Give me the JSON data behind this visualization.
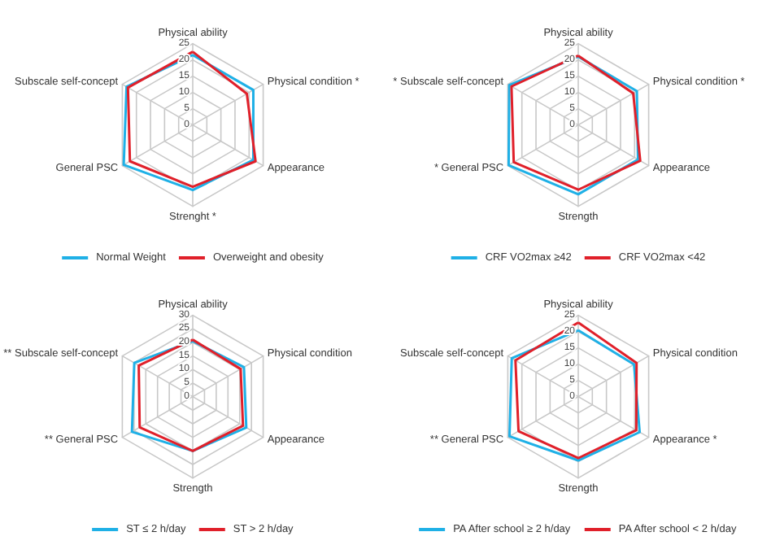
{
  "chart_data": [
    {
      "type": "radar",
      "categories": [
        "Physical ability",
        "Physical condition *",
        "Appearance",
        "Strenght *",
        "General PSC",
        "Subscale self-concept"
      ],
      "ylim": [
        0,
        25
      ],
      "yticks": [
        0,
        5,
        10,
        15,
        20,
        25
      ],
      "grid": true,
      "legend": "bottom",
      "marker": "none",
      "line_style": "solid",
      "series": [
        {
          "name": "Normal Weight",
          "color": "#1fb0e6",
          "values": [
            21.5,
            21.5,
            21.5,
            20,
            24.5,
            23.5
          ]
        },
        {
          "name": "Overweight and obesity",
          "color": "#e0202a",
          "values": [
            22.5,
            19.2,
            22.3,
            19,
            22.3,
            23
          ]
        }
      ]
    },
    {
      "type": "radar",
      "categories": [
        "Physical ability",
        "Physical condition *",
        "Appearance",
        "Strength",
        "* General PSC",
        "* Subscale self-concept"
      ],
      "ylim": [
        0,
        25
      ],
      "yticks": [
        0,
        5,
        10,
        15,
        20,
        25
      ],
      "grid": true,
      "legend": "bottom",
      "marker": "none",
      "line_style": "solid",
      "series": [
        {
          "name": "CRF VO2max ≥42",
          "color": "#1fb0e6",
          "values": [
            21,
            20.8,
            21.2,
            21.3,
            24.7,
            24.5
          ]
        },
        {
          "name": "CRF VO2max <42",
          "color": "#e0202a",
          "values": [
            21.3,
            19.5,
            22,
            19.9,
            22.9,
            23.7
          ]
        }
      ]
    },
    {
      "type": "radar",
      "categories": [
        "Physical ability",
        "Physical condition",
        "Appearance",
        "Strength",
        "** General PSC",
        "** Subscale self-concept"
      ],
      "ylim": [
        0,
        30
      ],
      "yticks": [
        0,
        5,
        10,
        15,
        20,
        25,
        30
      ],
      "grid": true,
      "legend": "bottom",
      "marker": "none",
      "line_style": "solid",
      "series": [
        {
          "name": "ST ≤ 2 h/day",
          "color": "#1fb0e6",
          "values": [
            20.5,
            21.8,
            22.8,
            20,
            25.9,
            24.9
          ]
        },
        {
          "name": "ST > 2 h/day",
          "color": "#e0202a",
          "values": [
            21,
            20.4,
            21.4,
            20,
            22.6,
            23
          ]
        }
      ]
    },
    {
      "type": "radar",
      "categories": [
        "Physical ability",
        "Physical condition",
        "Appearance *",
        "Strength",
        "** General PSC",
        "Subscale self-concept"
      ],
      "ylim": [
        0,
        25
      ],
      "yticks": [
        0,
        5,
        10,
        15,
        20,
        25
      ],
      "grid": true,
      "legend": "bottom",
      "marker": "none",
      "line_style": "solid",
      "series": [
        {
          "name": "PA After school ≥ 2 h/day",
          "color": "#1fb0e6",
          "values": [
            20.4,
            19.8,
            21.8,
            19.6,
            24.4,
            23.6
          ]
        },
        {
          "name": "PA After school < 2 h/day",
          "color": "#e0202a",
          "values": [
            22.8,
            20.7,
            20.6,
            18.9,
            21.2,
            22.3
          ]
        }
      ]
    }
  ]
}
